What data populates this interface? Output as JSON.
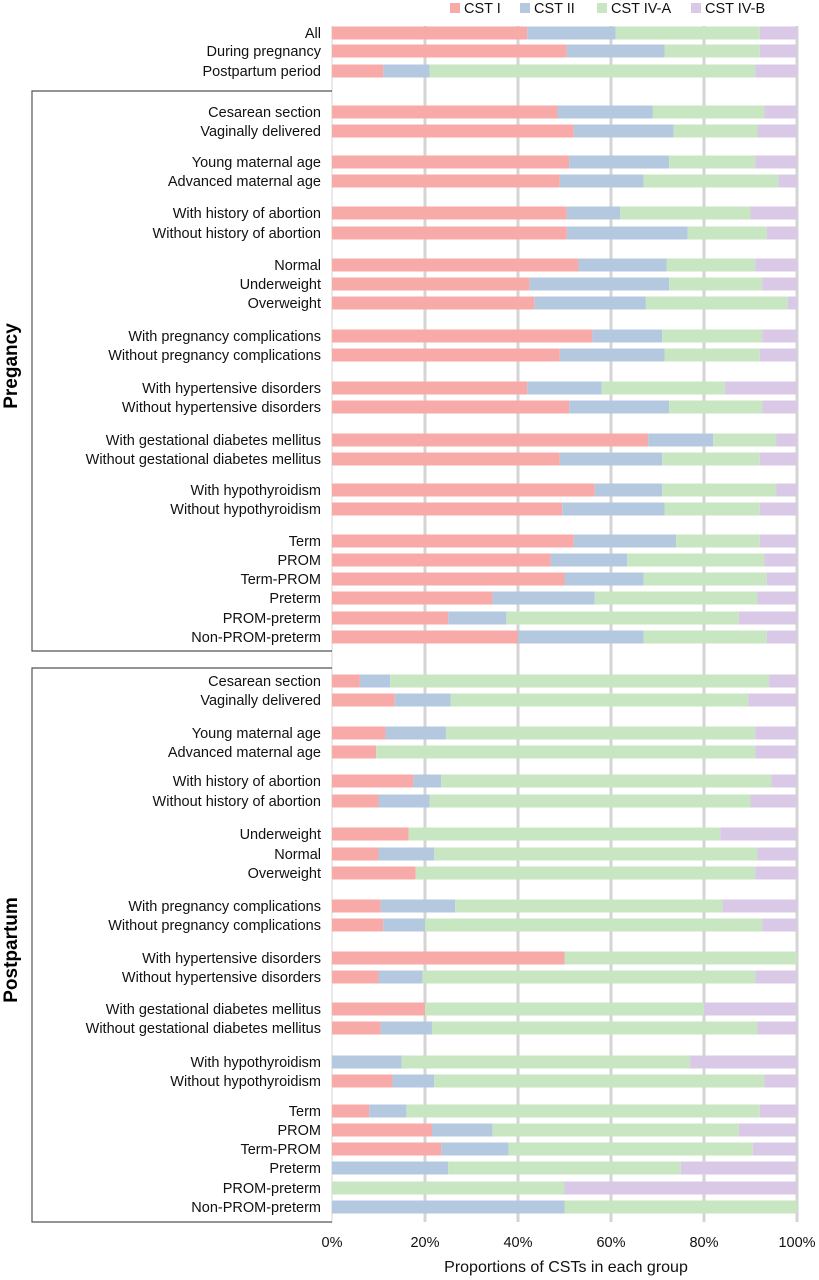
{
  "chart_data": {
    "type": "bar",
    "orientation": "horizontal",
    "stacked": true,
    "normalized": true,
    "xlabel": "Proportions of CSTs in each group",
    "xlim": [
      0,
      100
    ],
    "x_ticks": [
      "0%",
      "20%",
      "40%",
      "60%",
      "80%",
      "100%"
    ],
    "x_tick_values": [
      0,
      20,
      40,
      60,
      80,
      100
    ],
    "grid": "vertical",
    "legend_position": "top-right",
    "series": [
      {
        "name": "CST I",
        "color": "#f8aaa9"
      },
      {
        "name": "CST II",
        "color": "#b4c8e0"
      },
      {
        "name": "CST IV-A",
        "color": "#c8e6c2"
      },
      {
        "name": "CST IV-B",
        "color": "#dac9e6"
      }
    ],
    "groups": [
      {
        "name": "Pregancy",
        "first_row": 3,
        "last_row": 30
      },
      {
        "name": "Postpartum",
        "first_row": 31,
        "last_row": 57
      }
    ],
    "rows": [
      {
        "label": "All",
        "values": [
          42,
          19,
          31,
          8
        ]
      },
      {
        "label": "During pregnancy",
        "values": [
          50.5,
          21,
          20.5,
          8
        ]
      },
      {
        "label": "Postpartum period",
        "values": [
          11,
          10,
          70,
          9
        ]
      },
      {
        "label": "Cesarean section",
        "values": [
          48.5,
          20.5,
          24,
          7
        ]
      },
      {
        "label": "Vaginally delivered",
        "values": [
          52,
          21.5,
          18,
          8.5
        ]
      },
      {
        "label": "Young maternal age",
        "values": [
          51,
          21.5,
          18.5,
          9
        ]
      },
      {
        "label": "Advanced maternal age",
        "values": [
          49,
          18,
          29,
          4
        ]
      },
      {
        "label": "With history of abortion",
        "values": [
          50.5,
          11.5,
          28,
          10
        ]
      },
      {
        "label": "Without history of abortion",
        "values": [
          50.5,
          26,
          17,
          6.5
        ]
      },
      {
        "label": "Normal",
        "values": [
          53,
          19,
          19,
          9
        ]
      },
      {
        "label": "Underweight",
        "values": [
          42.5,
          30,
          20,
          7.5
        ]
      },
      {
        "label": "Overweight",
        "values": [
          43.5,
          24,
          30.5,
          2
        ]
      },
      {
        "label": "With pregnancy complications",
        "values": [
          56,
          15,
          21.5,
          7.5
        ]
      },
      {
        "label": "Without pregnancy complications",
        "values": [
          49,
          22.5,
          20.5,
          8
        ]
      },
      {
        "label": "With  hypertensive disorders",
        "values": [
          42,
          16,
          26.5,
          15.5
        ]
      },
      {
        "label": "Without  hypertensive disorders",
        "values": [
          51,
          21.5,
          20,
          7.5
        ]
      },
      {
        "label": "With  gestational diabetes mellitus",
        "values": [
          68,
          14,
          13.5,
          4.5
        ]
      },
      {
        "label": "Without gestational diabetes mellitus",
        "values": [
          49,
          22,
          21,
          8
        ]
      },
      {
        "label": "With  hypothyroidism",
        "values": [
          56.5,
          14.5,
          24.5,
          4.5
        ]
      },
      {
        "label": "Without  hypothyroidism",
        "values": [
          49.5,
          22,
          20.5,
          8
        ]
      },
      {
        "label": "Term",
        "values": [
          52,
          22,
          18,
          8
        ]
      },
      {
        "label": "PROM",
        "values": [
          47,
          16.5,
          29.5,
          7
        ]
      },
      {
        "label": "Term-PROM",
        "values": [
          50,
          17,
          26.5,
          6.5
        ]
      },
      {
        "label": "Preterm",
        "values": [
          34.5,
          22,
          35,
          8.5
        ]
      },
      {
        "label": "PROM-preterm",
        "values": [
          25,
          12.5,
          50,
          12.5
        ]
      },
      {
        "label": "Non-PROM-preterm",
        "values": [
          40,
          27,
          26.5,
          6.5
        ]
      },
      {
        "label": "Cesarean section",
        "values": [
          6,
          6.5,
          81.5,
          6
        ]
      },
      {
        "label": "Vaginally delivered",
        "values": [
          13.5,
          12,
          64,
          10.5
        ]
      },
      {
        "label": "Young maternal age",
        "values": [
          11.5,
          13,
          66.5,
          9
        ]
      },
      {
        "label": "Advanced maternal age",
        "values": [
          9.5,
          0,
          81.5,
          9
        ]
      },
      {
        "label": "With history of abortion",
        "values": [
          17.5,
          6,
          71,
          5.5
        ]
      },
      {
        "label": "Without history of abortion",
        "values": [
          10,
          11,
          69,
          10
        ]
      },
      {
        "label": "Underweight",
        "values": [
          16.5,
          0,
          67,
          16.5
        ]
      },
      {
        "label": "Normal",
        "values": [
          10,
          12,
          69.5,
          8.5
        ]
      },
      {
        "label": "Overweight",
        "values": [
          18,
          0,
          73,
          9
        ]
      },
      {
        "label": "With pregnancy complications",
        "values": [
          10.5,
          16,
          57.5,
          16
        ]
      },
      {
        "label": "Without pregnancy complications",
        "values": [
          11,
          9,
          72.5,
          7.5
        ]
      },
      {
        "label": "With  hypertensive disorders",
        "values": [
          50,
          0,
          50,
          0
        ]
      },
      {
        "label": "Without  hypertensive disorders",
        "values": [
          10,
          9.5,
          71.5,
          9
        ]
      },
      {
        "label": "With  gestational diabetes mellitus",
        "values": [
          20,
          0,
          60,
          20
        ]
      },
      {
        "label": "Without gestational diabetes mellitus",
        "values": [
          10.5,
          11,
          70,
          8.5
        ]
      },
      {
        "label": "With  hypothyroidism",
        "values": [
          0,
          15,
          62,
          23
        ]
      },
      {
        "label": "Without  hypothyroidism",
        "values": [
          13,
          9,
          71,
          7
        ]
      },
      {
        "label": "Term",
        "values": [
          8,
          8,
          76,
          8
        ]
      },
      {
        "label": "PROM",
        "values": [
          21.5,
          13,
          53,
          12.5
        ]
      },
      {
        "label": "Term-PROM",
        "values": [
          23.5,
          14.5,
          52.5,
          9.5
        ]
      },
      {
        "label": "Preterm",
        "values": [
          0,
          25,
          50,
          25
        ]
      },
      {
        "label": "PROM-preterm",
        "values": [
          0,
          0,
          50,
          50
        ]
      },
      {
        "label": "Non-PROM-preterm",
        "values": [
          0,
          50,
          50,
          0
        ]
      }
    ]
  }
}
